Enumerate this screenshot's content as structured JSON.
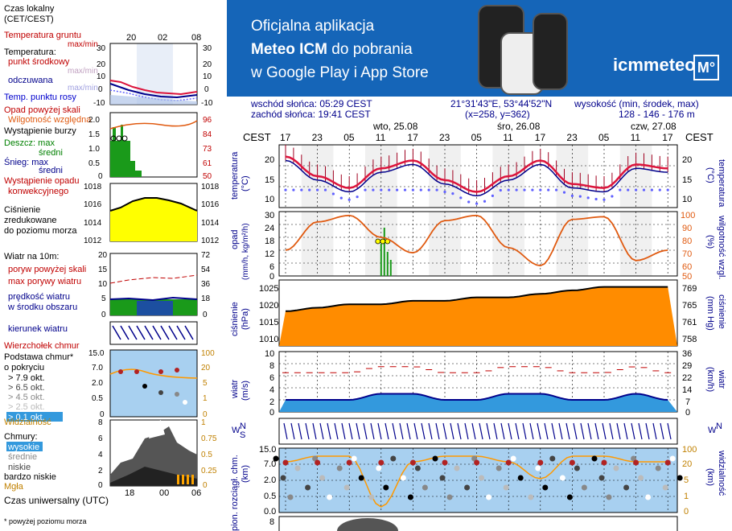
{
  "legend": {
    "time_local": [
      "Czas lokalny",
      "(CET/CEST)"
    ],
    "time_ticks_top": [
      "20",
      "02",
      "08"
    ],
    "ground_temp": [
      "Temperatura gruntu",
      "max/min"
    ],
    "temperature": "Temperatura:",
    "mid_point": "punkt środkowy",
    "max_min": "max/min",
    "feels_like": "odczuwana",
    "dew_point": "Temp. punktu rosy",
    "precip_above": "Opad powyżej skali",
    "rel_humidity": "Wilgotność względna",
    "storm": "Wystąpienie burzy",
    "rain_max": "Deszcz: max",
    "rain_mid": "średni",
    "snow_max": "Śnieg:     max",
    "snow_mid": "średni",
    "precip_convective": [
      "Wystąpienie opadu",
      "konwekcyjnego"
    ],
    "pressure": [
      "Ciśnienie",
      "zredukowane",
      "do poziomu morza"
    ],
    "wind_10m": "Wiatr na 10m:",
    "gusts_above": "poryw powyżej skali",
    "max_gusts": "max porywy wiatru",
    "wind_speed": [
      "prędkość wiatru",
      "w środku obszaru"
    ],
    "wind_dir": "kierunek wiatru",
    "cloud_top": "Wierzchołek chmur",
    "cloud_base": [
      "Podstawa chmur*",
      "o pokryciu"
    ],
    "cov_79": "> 7.9 okt.",
    "cov_65": "> 6.5 okt.",
    "cov_45": "> 4.5 okt.",
    "cov_25": "> 2.5 okt.",
    "cov_01": "> 0.1 okt.",
    "visibility": "Widzialność",
    "clouds": "Chmury:",
    "high": "wysokie",
    "mid": "średnie",
    "low": "niskie",
    "very_low": "bardzo niskie",
    "fog": "Mgła",
    "utc": "Czas uniwersalny (UTC)",
    "utc_ticks": [
      "18",
      "00",
      "06"
    ],
    "footnote": "* powyżej poziomu morza",
    "left_ticks": {
      "temp": [
        "30",
        "20",
        "10",
        "0",
        "-10"
      ],
      "temp_r": [
        "30",
        "20",
        "10",
        "0",
        "-10"
      ],
      "precip": [
        "2.0",
        "1.5",
        "1.0",
        "0.5",
        "0"
      ],
      "precip_r": [
        "96",
        "84",
        "73",
        "61",
        "50"
      ],
      "press": [
        "1018",
        "1016",
        "1014",
        "1012"
      ],
      "press_r": [
        "1018",
        "1016",
        "1014",
        "1012"
      ],
      "wind": [
        "20",
        "15",
        "10",
        "5",
        "0"
      ],
      "wind_r": [
        "72",
        "54",
        "36",
        "18",
        "0"
      ],
      "cloud": [
        "15.0",
        "7.0",
        "2.0",
        "0.5",
        "0"
      ],
      "cloud_r": [
        "100",
        "20",
        "5",
        "1",
        "0"
      ],
      "vis": [
        "8",
        "6",
        "4",
        "2",
        "0"
      ],
      "vis_r": [
        "1",
        "0.75",
        "0.5",
        "0.25",
        "0"
      ]
    }
  },
  "banner": {
    "line1": "Oficjalna aplikacja",
    "line2a": "Meteo ICM",
    "line2b": " do pobrania",
    "line3": "w Google Play i App Store",
    "logo": "icmmeteo",
    "logo_m": "M°"
  },
  "info": {
    "sunrise": "wschód słońca: 05:29 CEST",
    "sunset": "zachód słońca: 19:41 CEST",
    "coords": "21°31'43\"E, 53°44'52\"N",
    "grid": "(x=258,  y=362)",
    "altitude_label": "wysokość (min, środek, max)",
    "altitude": "128 - 146 - 176 m"
  },
  "days": [
    "wto, 25.08",
    "śro, 26.08",
    "czw, 27.08"
  ],
  "cest": "CEST",
  "hour_ticks": [
    "17",
    "23",
    "05",
    "11",
    "17",
    "23",
    "05",
    "11",
    "17",
    "23",
    "05",
    "11",
    "17"
  ],
  "panels": {
    "temp": {
      "label": "temperatura",
      "unit": "(°C)",
      "ticks": [
        "20",
        "15",
        "10"
      ]
    },
    "precip": {
      "label": "opad",
      "unit": "(mm/h, kg/m²/h)",
      "ticks": [
        "30",
        "24",
        "18",
        "12",
        "6",
        "0"
      ],
      "right_label": "wilgotność wzgl.",
      "right_unit": "(%)",
      "right_ticks": [
        "100",
        "90",
        "80",
        "70",
        "60",
        "50"
      ]
    },
    "pressure": {
      "label": "ciśnienie",
      "unit": "(hPa)",
      "ticks": [
        "1025",
        "1020",
        "1015",
        "1010"
      ],
      "right_label": "ciśnienie",
      "right_unit": "(mm Hg)",
      "right_ticks": [
        "769",
        "765",
        "761",
        "758"
      ]
    },
    "wind": {
      "label": "wiatr",
      "unit": "(m/s)",
      "ticks": [
        "10",
        "8",
        "6",
        "4",
        "2",
        "0"
      ],
      "right_label": "wiatr",
      "right_unit": "(km/h)",
      "right_ticks": [
        "36",
        "29",
        "22",
        "14",
        "7",
        "0"
      ]
    },
    "winddir": {
      "labels": [
        "W",
        "N",
        "S",
        "E"
      ]
    },
    "cloud": {
      "label": "pion. rozciągł. chm.",
      "unit": "(km)",
      "ticks": [
        "15.0",
        "7.0",
        "2.0",
        "0.5",
        "0.0"
      ],
      "right_label": "widzialność",
      "right_unit": "(km)",
      "right_ticks": [
        "100",
        "20",
        "5",
        "1",
        "0"
      ]
    },
    "next": {
      "ticks": [
        "8"
      ]
    }
  },
  "colors": {
    "accent": "#00008b",
    "temp_line": "#dc143c",
    "humidity": "#e05a10",
    "pressure_fill": "#ff8c00",
    "banner": "#1565b8"
  },
  "chart_data": {
    "type": "line",
    "x": [
      "17",
      "23",
      "05",
      "11",
      "17",
      "23",
      "05",
      "11",
      "17",
      "23",
      "05",
      "11",
      "17"
    ],
    "series": [
      {
        "name": "temperatura",
        "values": [
          20,
          15,
          12,
          17,
          19,
          14,
          11,
          15,
          19,
          13,
          12,
          18,
          17
        ]
      },
      {
        "name": "wilgotność wzgl.",
        "values": [
          70,
          92,
          97,
          80,
          68,
          93,
          97,
          72,
          58,
          94,
          96,
          62,
          70
        ]
      },
      {
        "name": "ciśnienie",
        "values": [
          1018,
          1019,
          1020,
          1020,
          1021,
          1021,
          1022,
          1022,
          1023,
          1024,
          1025,
          1025,
          1025
        ]
      },
      {
        "name": "wiatr",
        "values": [
          2,
          2,
          2,
          3,
          3,
          2,
          2,
          3,
          3,
          2,
          2,
          3,
          2
        ]
      }
    ]
  }
}
